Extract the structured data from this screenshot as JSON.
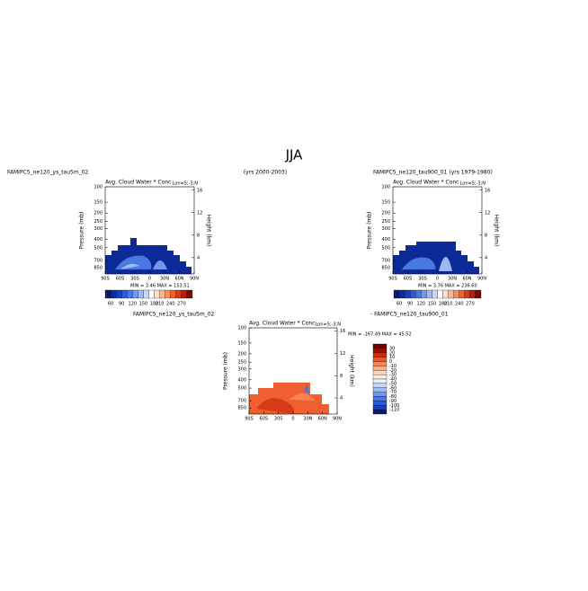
{
  "title": "JJA",
  "chart_data": [
    {
      "type": "contour",
      "title": "Avg. Cloud Water * Conc",
      "subtitle": "Lon=5;-3;N",
      "left_label": "FAMIPC5_ne120_ys_tau5m_02",
      "right_label": "(yrs 2000-2003)",
      "stats": "MIN =   3.46   MAX = 153.51",
      "ylabel": "Pressure (mb)",
      "y2label": "Height (km)",
      "log_y": true,
      "xlim": [
        -90,
        90
      ],
      "xticks": [
        {
          "value": -90,
          "label": "90S"
        },
        {
          "value": -60,
          "label": "60S"
        },
        {
          "value": -30,
          "label": "30S"
        },
        0,
        {
          "value": 30,
          "label": "30N"
        },
        {
          "value": 60,
          "label": "60N"
        },
        {
          "value": 90,
          "label": "90N"
        }
      ],
      "ylim": [
        1000,
        100
      ],
      "yticks": [
        100,
        150,
        200,
        250,
        300,
        400,
        500,
        700,
        850
      ],
      "y2lim": [
        1.1,
        16.6
      ],
      "y2ticks": [
        4,
        8,
        12,
        16
      ],
      "colorbar": {
        "labels": [
          60,
          90,
          120,
          150,
          180,
          210,
          240,
          270
        ],
        "colors": [
          "#0a1a6e",
          "#0d2a9a",
          "#1540c0",
          "#2a5ad6",
          "#4a78e2",
          "#6f98ec",
          "#9cbaf2",
          "#c8d8f8",
          "#ffffff",
          "#fde0c8",
          "#fbb890",
          "#f88c5c",
          "#f0602e",
          "#d63a16",
          "#b0200c",
          "#7a0a04"
        ]
      }
    },
    {
      "type": "contour",
      "title": "Avg. Cloud Water * Conc",
      "subtitle": "Lon=5;-3;N",
      "left_label": "FAMIPC5_ne120_tau900_01  (yrs 1979-1980)",
      "stats": "MIN =   3.76   MAX = 236.60",
      "ylabel": "Pressure (mb)",
      "y2label": "Height (km)",
      "log_y": true,
      "xlim": [
        -90,
        90
      ],
      "xticks": [
        {
          "value": -90,
          "label": "90S"
        },
        {
          "value": -60,
          "label": "60S"
        },
        {
          "value": -30,
          "label": "30S"
        },
        0,
        {
          "value": 30,
          "label": "30N"
        },
        {
          "value": 60,
          "label": "60N"
        },
        {
          "value": 90,
          "label": "90N"
        }
      ],
      "ylim": [
        1000,
        100
      ],
      "yticks": [
        100,
        150,
        200,
        250,
        300,
        400,
        500,
        700,
        850
      ],
      "y2lim": [
        1.1,
        16.6
      ],
      "y2ticks": [
        4,
        8,
        12,
        16
      ],
      "colorbar": {
        "labels": [
          60,
          90,
          120,
          150,
          180,
          210,
          240,
          270
        ],
        "colors": [
          "#0a1a6e",
          "#0d2a9a",
          "#1540c0",
          "#2a5ad6",
          "#4a78e2",
          "#6f98ec",
          "#9cbaf2",
          "#c8d8f8",
          "#ffffff",
          "#fde0c8",
          "#fbb890",
          "#f88c5c",
          "#f0602e",
          "#d63a16",
          "#b0200c",
          "#7a0a04"
        ]
      }
    },
    {
      "type": "contour",
      "title": "Avg. Cloud Water * Conc",
      "subtitle": "Lon=5;-3;N",
      "left_label": "FAMIPC5_ne120_ys_tau5m_02",
      "right_label": "- FAMIPC5_ne120_tau900_01",
      "stats": "MIN = -167.49   MAX =  45.52",
      "ylabel": "Pressure (mb)",
      "y2label": "Height (km)",
      "log_y": true,
      "xlim": [
        -90,
        90
      ],
      "xticks": [
        {
          "value": -90,
          "label": "90S"
        },
        {
          "value": -60,
          "label": "60S"
        },
        {
          "value": -30,
          "label": "30S"
        },
        0,
        {
          "value": 30,
          "label": "30N"
        },
        {
          "value": 60,
          "label": "60N"
        },
        {
          "value": 90,
          "label": "90N"
        }
      ],
      "ylim": [
        1000,
        100
      ],
      "yticks": [
        100,
        150,
        200,
        250,
        300,
        400,
        500,
        700,
        850
      ],
      "y2lim": [
        1.1,
        16.6
      ],
      "y2ticks": [
        4,
        8,
        12,
        16
      ],
      "colorbar": {
        "labels": [
          30,
          20,
          10,
          0,
          -10,
          -20,
          -30,
          -40,
          -50,
          -60,
          -70,
          -80,
          -90,
          -100,
          -110
        ],
        "colors": [
          "#6a0000",
          "#a00a00",
          "#d42a08",
          "#f0562a",
          "#f88456",
          "#fbae88",
          "#fdd4bc",
          "#fdeee4",
          "#eaf0fb",
          "#c8d8f8",
          "#9cbaf2",
          "#6f98ec",
          "#4a78e2",
          "#2a5ad6",
          "#1540c0",
          "#0a1a6e"
        ]
      }
    }
  ]
}
